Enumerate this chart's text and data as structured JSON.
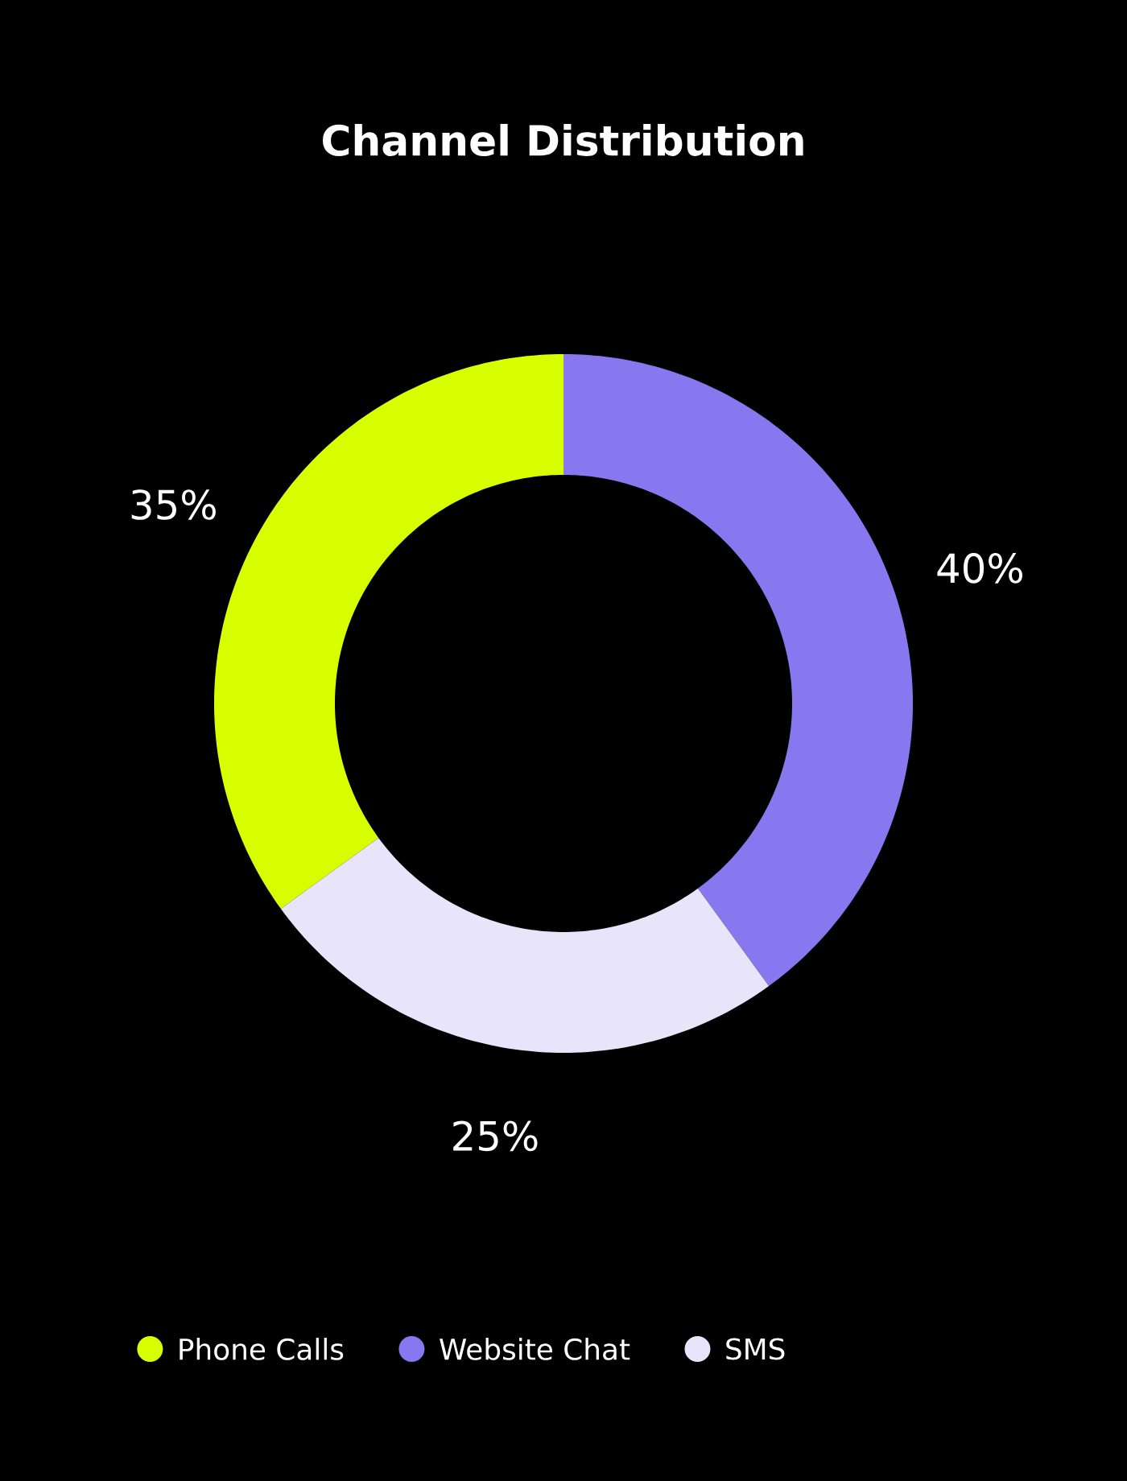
{
  "chart_data": {
    "type": "donut",
    "title": "Channel Distribution",
    "categories": [
      "Phone Calls",
      "Website Chat",
      "SMS"
    ],
    "values": [
      35,
      40,
      25
    ],
    "value_labels": [
      "35%",
      "40%",
      "25%"
    ],
    "colors": [
      "#d8ff00",
      "#8878f0",
      "#e8e4fa"
    ],
    "legend": "bottom"
  }
}
